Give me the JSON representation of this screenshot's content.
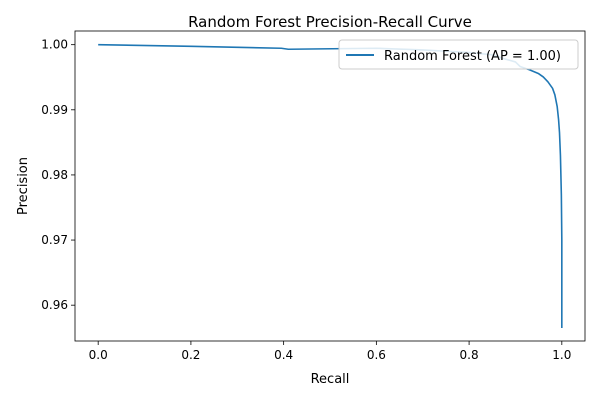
{
  "chart_data": {
    "type": "line",
    "title": "Random Forest Precision-Recall Curve",
    "xlabel": "Recall",
    "ylabel": "Precision",
    "xlim": [
      -0.05,
      1.05
    ],
    "ylim": [
      0.9545,
      1.0021
    ],
    "xticks": [
      0.0,
      0.2,
      0.4,
      0.6,
      0.8,
      1.0
    ],
    "xtick_labels": [
      "0.0",
      "0.2",
      "0.4",
      "0.6",
      "0.8",
      "1.0"
    ],
    "yticks": [
      0.96,
      0.97,
      0.98,
      0.99,
      1.0
    ],
    "ytick_labels": [
      "0.96",
      "0.97",
      "0.98",
      "0.99",
      "1.00"
    ],
    "grid": false,
    "legend_position": "upper-right",
    "series": [
      {
        "name": "Random Forest (AP = 1.00)",
        "color": "#1f77b4",
        "x": [
          0.0,
          0.2,
          0.395,
          0.41,
          0.6,
          0.7,
          0.8,
          0.85,
          0.88,
          0.9,
          0.91,
          0.93,
          0.95,
          0.96,
          0.97,
          0.98,
          0.985,
          0.99,
          0.993,
          0.995,
          0.997,
          0.998,
          0.999,
          1.0,
          1.0,
          1.0
        ],
        "y": [
          1.0,
          0.99975,
          0.99945,
          0.9993,
          0.99945,
          0.9992,
          0.9988,
          0.99845,
          0.99775,
          0.99735,
          0.99665,
          0.99615,
          0.99555,
          0.99505,
          0.9943,
          0.9933,
          0.9923,
          0.9905,
          0.9885,
          0.9865,
          0.983,
          0.98,
          0.977,
          0.97,
          0.962,
          0.9565
        ]
      }
    ]
  }
}
